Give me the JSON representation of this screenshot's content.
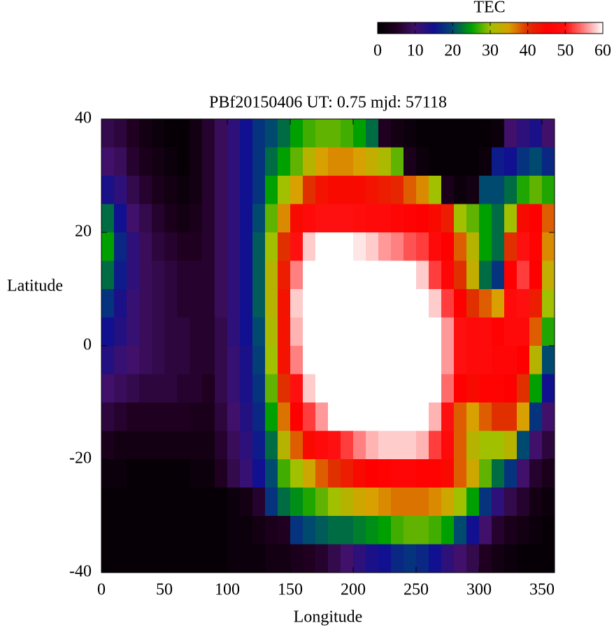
{
  "chart_data": {
    "type": "heatmap",
    "title": "PBf20150406  UT: 0.75  mjd: 57118",
    "xlabel": "Longitude",
    "ylabel": "Latitude",
    "colorbar_label": "TEC",
    "xlim": [
      0,
      360
    ],
    "ylim": [
      -40,
      40
    ],
    "xticks": [
      0,
      50,
      100,
      150,
      200,
      250,
      300,
      350
    ],
    "yticks": [
      -40,
      -20,
      0,
      20,
      40
    ],
    "clim": [
      0,
      60
    ],
    "cticks": [
      0,
      10,
      20,
      30,
      40,
      50,
      60
    ],
    "colormap": [
      [
        0,
        "#000000"
      ],
      [
        5,
        "#200020"
      ],
      [
        10,
        "#40106a"
      ],
      [
        15,
        "#101090"
      ],
      [
        20,
        "#004a70"
      ],
      [
        25,
        "#00a000"
      ],
      [
        30,
        "#a0c000"
      ],
      [
        35,
        "#d8a000"
      ],
      [
        40,
        "#e03000"
      ],
      [
        45,
        "#ff0000"
      ],
      [
        50,
        "#ff1010"
      ],
      [
        55,
        "#ff8080"
      ],
      [
        60,
        "#ffffff"
      ]
    ],
    "x": [
      5,
      15,
      25,
      35,
      45,
      55,
      65,
      75,
      85,
      95,
      105,
      115,
      125,
      135,
      145,
      155,
      165,
      175,
      185,
      195,
      205,
      215,
      225,
      235,
      245,
      255,
      265,
      275,
      285,
      295,
      305,
      315,
      325,
      335,
      345,
      355
    ],
    "y": [
      37.5,
      32.5,
      27.5,
      22.5,
      17.5,
      12.5,
      7.5,
      2.5,
      -2.5,
      -7.5,
      -12.5,
      -17.5,
      -22.5,
      -27.5,
      -32.5,
      -37.5
    ],
    "z": [
      [
        8,
        10,
        14,
        22,
        25,
        22,
        18,
        15,
        13,
        10,
        7,
        4,
        2,
        1,
        1,
        1
      ],
      [
        7,
        9,
        12,
        15,
        17,
        16,
        14,
        13,
        11,
        9,
        6,
        3,
        2,
        1,
        1,
        1
      ],
      [
        5,
        6,
        8,
        10,
        12,
        12,
        11,
        11,
        10,
        8,
        5,
        3,
        1,
        1,
        1,
        1
      ],
      [
        3,
        4,
        6,
        8,
        9,
        9,
        9,
        9,
        9,
        7,
        5,
        3,
        1,
        1,
        1,
        1
      ],
      [
        2,
        3,
        4,
        6,
        7,
        8,
        8,
        8,
        8,
        7,
        5,
        3,
        1,
        1,
        1,
        1
      ],
      [
        1,
        2,
        3,
        4,
        6,
        7,
        7,
        7,
        7,
        7,
        5,
        3,
        1,
        1,
        1,
        1
      ],
      [
        1,
        1,
        2,
        3,
        5,
        6,
        6,
        7,
        7,
        6,
        5,
        3,
        1,
        1,
        1,
        1
      ],
      [
        3,
        3,
        3,
        4,
        5,
        6,
        6,
        6,
        6,
        6,
        4,
        3,
        2,
        1,
        1,
        1
      ],
      [
        6,
        6,
        6,
        6,
        6,
        6,
        6,
        6,
        6,
        5,
        4,
        3,
        2,
        1,
        1,
        1
      ],
      [
        9,
        9,
        9,
        9,
        9,
        9,
        9,
        8,
        8,
        8,
        7,
        6,
        5,
        1,
        1,
        1
      ],
      [
        12,
        12,
        12,
        12,
        12,
        12,
        12,
        12,
        11,
        11,
        10,
        9,
        8,
        2,
        2,
        2
      ],
      [
        15,
        15,
        15,
        15,
        15,
        15,
        15,
        15,
        14,
        14,
        13,
        12,
        11,
        3,
        2,
        2
      ],
      [
        18,
        18,
        18,
        20,
        21,
        21,
        21,
        20,
        19,
        18,
        17,
        16,
        15,
        6,
        3,
        2
      ],
      [
        20,
        22,
        25,
        28,
        30,
        32,
        32,
        31,
        30,
        28,
        25,
        22,
        20,
        18,
        4,
        3
      ],
      [
        22,
        25,
        30,
        36,
        40,
        42,
        43,
        43,
        43,
        40,
        37,
        32,
        27,
        22,
        5,
        3
      ],
      [
        25,
        28,
        35,
        44,
        50,
        55,
        58,
        57,
        55,
        50,
        45,
        38,
        30,
        24,
        18,
        4
      ],
      [
        27,
        32,
        40,
        48,
        58,
        60,
        60,
        60,
        60,
        58,
        52,
        44,
        34,
        26,
        20,
        5
      ],
      [
        28,
        35,
        43,
        50,
        60,
        60,
        60,
        60,
        60,
        60,
        56,
        48,
        38,
        28,
        21,
        6
      ],
      [
        28,
        36,
        44,
        50,
        60,
        60,
        60,
        60,
        60,
        60,
        60,
        50,
        40,
        30,
        22,
        8
      ],
      [
        27,
        36,
        44,
        50,
        60,
        60,
        60,
        60,
        60,
        60,
        60,
        52,
        42,
        32,
        22,
        10
      ],
      [
        25,
        35,
        44,
        49,
        59,
        60,
        60,
        60,
        60,
        60,
        60,
        55,
        44,
        34,
        23,
        12
      ],
      [
        22,
        33,
        43,
        48,
        58,
        60,
        60,
        60,
        60,
        60,
        60,
        57,
        45,
        35,
        24,
        14
      ],
      [
        5,
        31,
        42,
        48,
        56,
        60,
        60,
        60,
        60,
        60,
        60,
        58,
        46,
        36,
        25,
        15
      ],
      [
        3,
        28,
        41,
        47,
        55,
        60,
        60,
        60,
        60,
        60,
        60,
        58,
        47,
        37,
        27,
        17
      ],
      [
        2,
        4,
        38,
        46,
        53,
        60,
        60,
        60,
        60,
        60,
        60,
        58,
        47,
        37,
        28,
        18
      ],
      [
        1,
        2,
        36,
        45,
        52,
        58,
        60,
        60,
        60,
        60,
        60,
        57,
        46,
        37,
        28,
        17
      ],
      [
        1,
        1,
        30,
        44,
        48,
        52,
        58,
        60,
        60,
        60,
        57,
        52,
        46,
        36,
        27,
        15
      ],
      [
        1,
        1,
        4,
        42,
        45,
        47,
        52,
        56,
        56,
        54,
        50,
        48,
        44,
        34,
        25,
        12
      ],
      [
        1,
        1,
        2,
        30,
        38,
        40,
        45,
        50,
        50,
        45,
        38,
        38,
        38,
        30,
        20,
        10
      ],
      [
        1,
        1,
        3,
        28,
        32,
        33,
        40,
        48,
        48,
        44,
        35,
        32,
        34,
        25,
        15,
        8
      ],
      [
        1,
        2,
        20,
        25,
        25,
        22,
        38,
        48,
        48,
        46,
        38,
        30,
        28,
        18,
        10,
        5
      ],
      [
        2,
        16,
        20,
        22,
        22,
        18,
        35,
        46,
        47,
        46,
        40,
        30,
        22,
        12,
        6,
        3
      ],
      [
        10,
        15,
        22,
        30,
        40,
        45,
        48,
        48,
        47,
        45,
        40,
        32,
        18,
        8,
        4,
        2
      ],
      [
        12,
        18,
        26,
        44,
        50,
        52,
        50,
        48,
        45,
        40,
        35,
        20,
        10,
        6,
        3,
        1
      ],
      [
        14,
        20,
        28,
        45,
        46,
        45,
        42,
        38,
        32,
        25,
        18,
        10,
        6,
        3,
        2,
        1
      ],
      [
        10,
        17,
        26,
        38,
        36,
        33,
        30,
        26,
        20,
        15,
        10,
        7,
        4,
        2,
        1,
        1
      ]
    ]
  }
}
